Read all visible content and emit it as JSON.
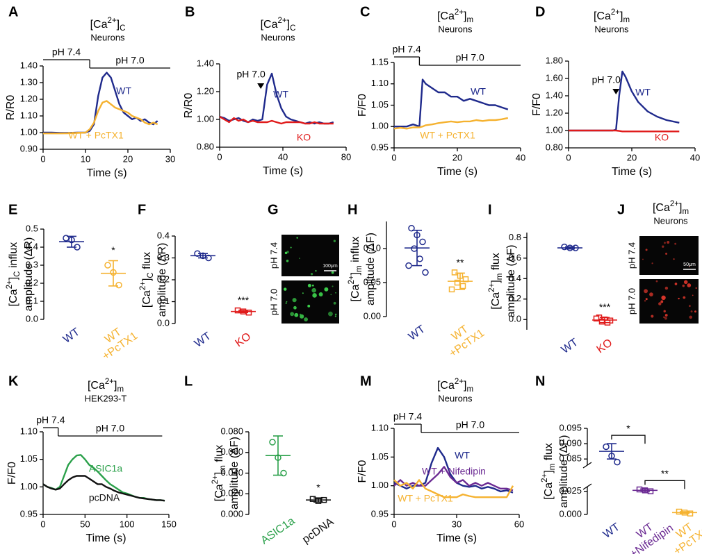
{
  "chart_data": [
    {
      "type": "line",
      "panel": "A",
      "title": "[Ca2+]C",
      "subtitle": "Neurons",
      "xlabel": "Time (s)",
      "ylabel": "R/R0",
      "x": [
        0,
        2,
        4,
        6,
        8,
        10,
        11,
        12,
        13,
        14,
        15,
        16,
        17,
        18,
        19,
        20,
        21,
        22,
        23,
        24,
        25,
        26,
        27
      ],
      "series": [
        {
          "name": "WT",
          "color": "#1f2a8c",
          "values": [
            1.0,
            1.0,
            0.998,
            0.998,
            1.0,
            1.0,
            1.01,
            1.05,
            1.22,
            1.33,
            1.36,
            1.33,
            1.25,
            1.17,
            1.12,
            1.1,
            1.08,
            1.09,
            1.07,
            1.08,
            1.06,
            1.05,
            1.07
          ]
        },
        {
          "name": "WT + PcTX1",
          "color": "#f5b230",
          "values": [
            0.995,
            0.995,
            0.995,
            0.996,
            0.998,
            1.0,
            1.02,
            1.06,
            1.13,
            1.18,
            1.19,
            1.17,
            1.15,
            1.14,
            1.13,
            1.12,
            1.1,
            1.09,
            1.08,
            1.06,
            1.05,
            1.06,
            1.05
          ]
        }
      ],
      "xlim": [
        0,
        30
      ],
      "xticks": [
        0,
        10,
        20,
        30
      ],
      "ylim": [
        0.9,
        1.4
      ],
      "yticks": [
        {
          "value": 0.9,
          "label": "0.90"
        },
        {
          "value": 1.0,
          "label": "1.00"
        },
        {
          "value": 1.1,
          "label": "1.10"
        },
        {
          "value": 1.2,
          "label": "1.20"
        },
        {
          "value": 1.3,
          "label": "1.30"
        },
        {
          "value": 1.4,
          "label": "1.40"
        }
      ],
      "protocol": [
        {
          "label": "pH 7.4",
          "start": 0,
          "end": 11
        },
        {
          "label": "pH 7.0",
          "start": 11,
          "end": 30
        }
      ]
    },
    {
      "type": "line",
      "panel": "B",
      "title": "[Ca2+]C",
      "subtitle": "Neurons",
      "xlabel": "Time (s)",
      "ylabel": "R/R0",
      "x": [
        0,
        3,
        6,
        9,
        12,
        15,
        18,
        21,
        24,
        27,
        30,
        33,
        36,
        39,
        42,
        45,
        48,
        51,
        54,
        57,
        60,
        63,
        66,
        69,
        72
      ],
      "series": [
        {
          "name": "WT",
          "color": "#1f2a8c",
          "values": [
            1.02,
            1.01,
            0.99,
            1.0,
            1.01,
            0.99,
            0.98,
            1.0,
            0.99,
            1.0,
            1.25,
            1.33,
            1.18,
            1.08,
            1.02,
            1.0,
            0.99,
            0.98,
            0.97,
            0.98,
            0.97,
            0.98,
            0.97,
            0.97,
            0.98
          ]
        },
        {
          "name": "KO",
          "color": "#e01b1b",
          "values": [
            1.02,
            1.0,
            0.98,
            1.01,
            0.99,
            1.0,
            0.98,
            0.99,
            0.98,
            0.98,
            0.98,
            0.99,
            0.98,
            0.97,
            0.98,
            0.98,
            0.98,
            0.98,
            0.97,
            0.97,
            0.98,
            0.97,
            0.97,
            0.97,
            0.97
          ]
        }
      ],
      "xlim": [
        0,
        80
      ],
      "xticks": [
        0,
        40,
        80
      ],
      "ylim": [
        0.8,
        1.4
      ],
      "yticks": [
        {
          "value": 0.8,
          "label": "0.80"
        },
        {
          "value": 1.0,
          "label": "1.00"
        },
        {
          "value": 1.2,
          "label": "1.20"
        },
        {
          "value": 1.4,
          "label": "1.40"
        }
      ],
      "annotation": {
        "text": "pH 7.0",
        "x": 26
      }
    },
    {
      "type": "line",
      "panel": "C",
      "title": "[Ca2+]m",
      "subtitle": "Neurons",
      "xlabel": "Time (s)",
      "ylabel": "F/F0",
      "x": [
        0,
        2,
        4,
        6,
        8,
        9,
        10,
        12,
        14,
        16,
        18,
        20,
        22,
        24,
        26,
        28,
        30,
        32,
        34,
        36
      ],
      "series": [
        {
          "name": "WT",
          "color": "#1f2a8c",
          "values": [
            1.0,
            1.0,
            1.0,
            1.005,
            1.0,
            1.11,
            1.1,
            1.09,
            1.08,
            1.08,
            1.07,
            1.07,
            1.06,
            1.065,
            1.06,
            1.055,
            1.05,
            1.05,
            1.045,
            1.04
          ]
        },
        {
          "name": "WT + PcTX1",
          "color": "#f5b230",
          "values": [
            0.995,
            0.997,
            0.995,
            0.998,
            0.998,
            1.0,
            1.003,
            1.005,
            1.008,
            1.01,
            1.012,
            1.01,
            1.012,
            1.012,
            1.015,
            1.013,
            1.015,
            1.015,
            1.017,
            1.02
          ]
        }
      ],
      "xlim": [
        0,
        40
      ],
      "xticks": [
        0,
        20,
        40
      ],
      "ylim": [
        0.95,
        1.15
      ],
      "yticks": [
        0.95,
        {
          "value": 1.0,
          "label": "1.00"
        },
        1.05,
        {
          "value": 1.1,
          "label": "1.10"
        },
        1.15
      ],
      "protocol": [
        {
          "label": "pH 7.4",
          "start": 0,
          "end": 8
        },
        {
          "label": "pH 7.0",
          "start": 8,
          "end": 40
        }
      ]
    },
    {
      "type": "line",
      "panel": "D",
      "title": "[Ca2+]m",
      "subtitle": "Neurons",
      "xlabel": "Time (s)",
      "ylabel": "F/F0",
      "x": [
        0,
        5,
        10,
        14,
        15,
        16,
        17,
        18,
        20,
        22,
        25,
        28,
        31,
        35
      ],
      "series": [
        {
          "name": "WT",
          "color": "#1f2a8c",
          "values": [
            1.0,
            1.0,
            1.0,
            1.0,
            1.01,
            1.4,
            1.68,
            1.62,
            1.45,
            1.33,
            1.22,
            1.16,
            1.12,
            1.09
          ]
        },
        {
          "name": "KO",
          "color": "#e01b1b",
          "values": [
            1.0,
            1.0,
            1.0,
            1.0,
            1.0,
            0.995,
            0.99,
            0.99,
            0.99,
            0.99,
            0.99,
            0.99,
            0.99,
            0.99
          ]
        }
      ],
      "xlim": [
        0,
        40
      ],
      "xticks": [
        0,
        20,
        40
      ],
      "ylim": [
        0.8,
        1.8
      ],
      "yticks": [
        {
          "value": 0.8,
          "label": "0.80"
        },
        {
          "value": 1.0,
          "label": "1.00"
        },
        {
          "value": 1.2,
          "label": "1.20"
        },
        {
          "value": 1.4,
          "label": "1.40"
        },
        {
          "value": 1.6,
          "label": "1.60"
        },
        {
          "value": 1.8,
          "label": "1.80"
        }
      ],
      "annotation": {
        "text": "pH 7.0",
        "x": 15
      }
    },
    {
      "type": "dot",
      "panel": "E",
      "ylabel": [
        "[Ca2+]C influx",
        "amplitude (ΔR)"
      ],
      "categories": [
        [
          "WT"
        ],
        [
          "WT",
          "+PcTX1"
        ]
      ],
      "colors": [
        "#1f2a8c",
        "#f5b230"
      ],
      "markers": [
        "circle",
        "circle"
      ],
      "points": [
        [
          0.45,
          0.44,
          0.4
        ],
        [
          0.3,
          0.26,
          0.19
        ]
      ],
      "mean": [
        0.43,
        0.255
      ],
      "sd": [
        0.03,
        0.07
      ],
      "ylim": [
        0,
        0.5
      ],
      "yticks": [
        {
          "value": 0,
          "label": "0.0"
        },
        0.1,
        0.2,
        0.3,
        0.4,
        0.5
      ],
      "significance": "*"
    },
    {
      "type": "dot",
      "panel": "F",
      "ylabel": [
        "[Ca2+]C flux",
        "amplitude (ΔR)"
      ],
      "categories": [
        [
          "WT"
        ],
        [
          "KO"
        ]
      ],
      "colors": [
        "#1f2a8c",
        "#e01b1b"
      ],
      "markers": [
        "circle",
        "square"
      ],
      "points": [
        [
          0.32,
          0.31,
          0.3
        ],
        [
          0.06,
          0.055,
          0.05
        ]
      ],
      "mean": [
        0.31,
        0.055
      ],
      "sd": [
        0.01,
        0.005
      ],
      "ylim": [
        0,
        0.4
      ],
      "yticks": [
        {
          "value": 0,
          "label": "0.0"
        },
        0.1,
        0.2,
        0.3,
        0.4
      ],
      "significance": "***"
    },
    {
      "type": "image",
      "panel": "G",
      "labels": [
        "pH 7.4",
        "pH 7.0"
      ],
      "scale_bar": "100μm",
      "color": "#3fd84f"
    },
    {
      "type": "dot",
      "panel": "H",
      "ylabel": [
        "[Ca2+]m influx",
        "amplitude (ΔF)"
      ],
      "categories": [
        [
          "WT"
        ],
        [
          "WT",
          "+PcTX1"
        ]
      ],
      "colors": [
        "#1f2a8c",
        "#f5b230"
      ],
      "markers": [
        "circle",
        "square"
      ],
      "points": [
        [
          0.13,
          0.12,
          0.11,
          0.1,
          0.085,
          0.075,
          0.065
        ],
        [
          0.065,
          0.06,
          0.055,
          0.05,
          0.045,
          0.04
        ]
      ],
      "mean": [
        0.101,
        0.052
      ],
      "sd": [
        0.026,
        0.012
      ],
      "ylim": [
        0,
        0.14
      ],
      "yticks": [
        {
          "value": 0,
          "label": "0.00"
        },
        0.05,
        {
          "value": 0.1,
          "label": "0.10"
        }
      ],
      "significance": "**"
    },
    {
      "type": "dot",
      "panel": "I",
      "ylabel": [
        "[Ca2+]m flux",
        "amplitude (ΔF)"
      ],
      "categories": [
        [
          "WT"
        ],
        [
          "KO"
        ]
      ],
      "colors": [
        "#1f2a8c",
        "#e01b1b"
      ],
      "markers": [
        "circle",
        "square"
      ],
      "points": [
        [
          0.71,
          0.7,
          0.7
        ],
        [
          0.02,
          0.0,
          -0.01,
          -0.02,
          -0.03,
          0.01
        ]
      ],
      "mean": [
        0.7,
        -0.005
      ],
      "sd": [
        0.01,
        0.025
      ],
      "ylim": [
        -0.1,
        0.85
      ],
      "yticks": [
        {
          "value": 0,
          "label": "0.0"
        },
        0.2,
        0.4,
        0.6,
        0.8
      ],
      "significance": "***"
    },
    {
      "type": "image",
      "panel": "J",
      "title": "[Ca2+]m",
      "subtitle": "Neurons",
      "labels": [
        "pH 7.4",
        "pH 7.0"
      ],
      "scale_bar": "50μm",
      "color": "#d8352a"
    },
    {
      "type": "line",
      "panel": "K",
      "title": "[Ca2+]m",
      "subtitle": "HEK293-T",
      "xlabel": "Time (s)",
      "ylabel": "F/F0",
      "x": [
        0,
        5,
        10,
        15,
        20,
        25,
        30,
        35,
        40,
        45,
        50,
        55,
        60,
        65,
        70,
        75,
        80,
        85,
        90,
        95,
        100,
        105,
        110,
        115,
        120,
        125,
        130,
        135,
        140,
        145
      ],
      "series": [
        {
          "name": "ASIC1a",
          "color": "#2aa04a",
          "values": [
            1.005,
            1.0,
            0.998,
            0.995,
            1.0,
            1.02,
            1.04,
            1.05,
            1.057,
            1.058,
            1.05,
            1.04,
            1.035,
            1.028,
            1.02,
            1.012,
            1.005,
            1.0,
            0.995,
            0.99,
            0.988,
            0.985,
            0.982,
            0.98,
            0.98,
            0.978,
            0.977,
            0.976,
            0.976,
            0.975
          ]
        },
        {
          "name": "pcDNA",
          "color": "#111111",
          "values": [
            1.005,
            1.0,
            0.997,
            0.995,
            0.997,
            1.005,
            1.012,
            1.017,
            1.02,
            1.02,
            1.02,
            1.015,
            1.01,
            1.005,
            1.005,
            1.0,
            0.997,
            0.993,
            0.99,
            0.988,
            0.986,
            0.984,
            0.982,
            0.98,
            0.979,
            0.978,
            0.977,
            0.976,
            0.976,
            0.975
          ]
        }
      ],
      "xlim": [
        0,
        150
      ],
      "xticks": [
        0,
        50,
        100,
        150
      ],
      "ylim": [
        0.95,
        1.1
      ],
      "yticks": [
        0.95,
        {
          "value": 1.0,
          "label": "1.00"
        },
        1.05,
        {
          "value": 1.1,
          "label": "1.10"
        }
      ],
      "protocol": [
        {
          "label": "pH 7.4",
          "start": 0,
          "end": 18
        },
        {
          "label": "pH 7.0",
          "start": 18,
          "end": 142
        }
      ]
    },
    {
      "type": "dot",
      "panel": "L",
      "ylabel": [
        "[Ca2+]m flux",
        "amplitude (ΔF)"
      ],
      "categories": [
        [
          "ASIC1a"
        ],
        [
          "pcDNA"
        ]
      ],
      "colors": [
        "#2aa04a",
        "#111111"
      ],
      "markers": [
        "circle",
        "square"
      ],
      "points": [
        [
          0.07,
          0.055,
          0.04
        ],
        [
          0.015,
          0.013,
          0.014
        ]
      ],
      "mean": [
        0.057,
        0.014
      ],
      "sd": [
        0.019,
        0.002
      ],
      "ylim": [
        0,
        0.08
      ],
      "yticks": [
        {
          "value": 0,
          "label": "0.000"
        },
        {
          "value": 0.02,
          "label": "0.020"
        },
        {
          "value": 0.04,
          "label": "0.040"
        },
        {
          "value": 0.06,
          "label": "0.060"
        },
        {
          "value": 0.08,
          "label": "0.080"
        }
      ],
      "significance": "*"
    },
    {
      "type": "line",
      "panel": "M",
      "title": "[Ca2+]m",
      "subtitle": "Neurons",
      "xlabel": "Time (s)",
      "ylabel": "F/F0",
      "x": [
        0,
        3,
        6,
        9,
        12,
        15,
        18,
        21,
        24,
        27,
        30,
        33,
        36,
        39,
        42,
        45,
        48,
        51,
        54,
        57
      ],
      "series": [
        {
          "name": "WT",
          "color": "#1f2a8c",
          "values": [
            1.005,
            1.0,
            0.995,
            1.0,
            1.0,
            1.005,
            1.04,
            1.066,
            1.05,
            1.02,
            1.005,
            1.0,
            0.998,
            1.0,
            0.995,
            0.998,
            0.995,
            0.99,
            0.992,
            0.988
          ]
        },
        {
          "name": "WT + Nifedipin",
          "color": "#6b2a93",
          "values": [
            1.0,
            1.01,
            1.0,
            1.005,
            1.0,
            1.0,
            1.01,
            1.02,
            1.033,
            1.015,
            1.005,
            1.01,
            1.0,
            1.005,
            1.0,
            1.005,
            1.0,
            0.995,
            0.995,
            0.992
          ]
        },
        {
          "name": "WT + PcTX1",
          "color": "#f5b230",
          "values": [
            1.01,
            1.0,
            1.005,
            0.995,
            1.01,
            0.995,
            0.99,
            0.985,
            0.98,
            0.98,
            0.98,
            0.985,
            0.982,
            0.98,
            0.98,
            0.98,
            0.98,
            0.98,
            0.98,
            1.0
          ]
        }
      ],
      "xlim": [
        0,
        60
      ],
      "xticks": [
        0,
        30,
        60
      ],
      "ylim": [
        0.95,
        1.1
      ],
      "yticks": [
        0.95,
        {
          "value": 1.0,
          "label": "1.00"
        },
        1.05,
        {
          "value": 1.1,
          "label": "1.10"
        }
      ],
      "protocol": [
        {
          "label": "pH 7.4",
          "start": 0,
          "end": 13
        },
        {
          "label": "pH 7.0",
          "start": 13,
          "end": 60
        }
      ]
    },
    {
      "type": "dot",
      "panel": "N",
      "ylabel": [
        "[Ca2+]m flux",
        "amplitude (ΔF)"
      ],
      "categories": [
        [
          "WT"
        ],
        [
          "WT",
          "+Nifedipin"
        ],
        [
          "WT",
          "+PcTX1"
        ]
      ],
      "colors": [
        "#1f2a8c",
        "#6b2a93",
        "#f5b230"
      ],
      "markers": [
        "circle",
        "square",
        "square"
      ],
      "points": [
        [
          0.089,
          0.086,
          0.084
        ],
        [
          0.027,
          0.026,
          0.025
        ],
        [
          0.003,
          0.002,
          0.001
        ]
      ],
      "mean": [
        0.0875,
        0.026,
        0.002
      ],
      "sd": [
        0.0025,
        0.0015,
        0.001
      ],
      "ylim": [
        0,
        0.095
      ],
      "ybreak": [
        0.03,
        0.083
      ],
      "yticks": [
        {
          "value": 0,
          "label": "0.000"
        },
        0.025,
        0.085,
        {
          "value": 0.09,
          "label": "0.090"
        },
        0.095
      ],
      "comparisons": [
        {
          "label": "*"
        },
        {
          "label": "**"
        }
      ]
    }
  ]
}
